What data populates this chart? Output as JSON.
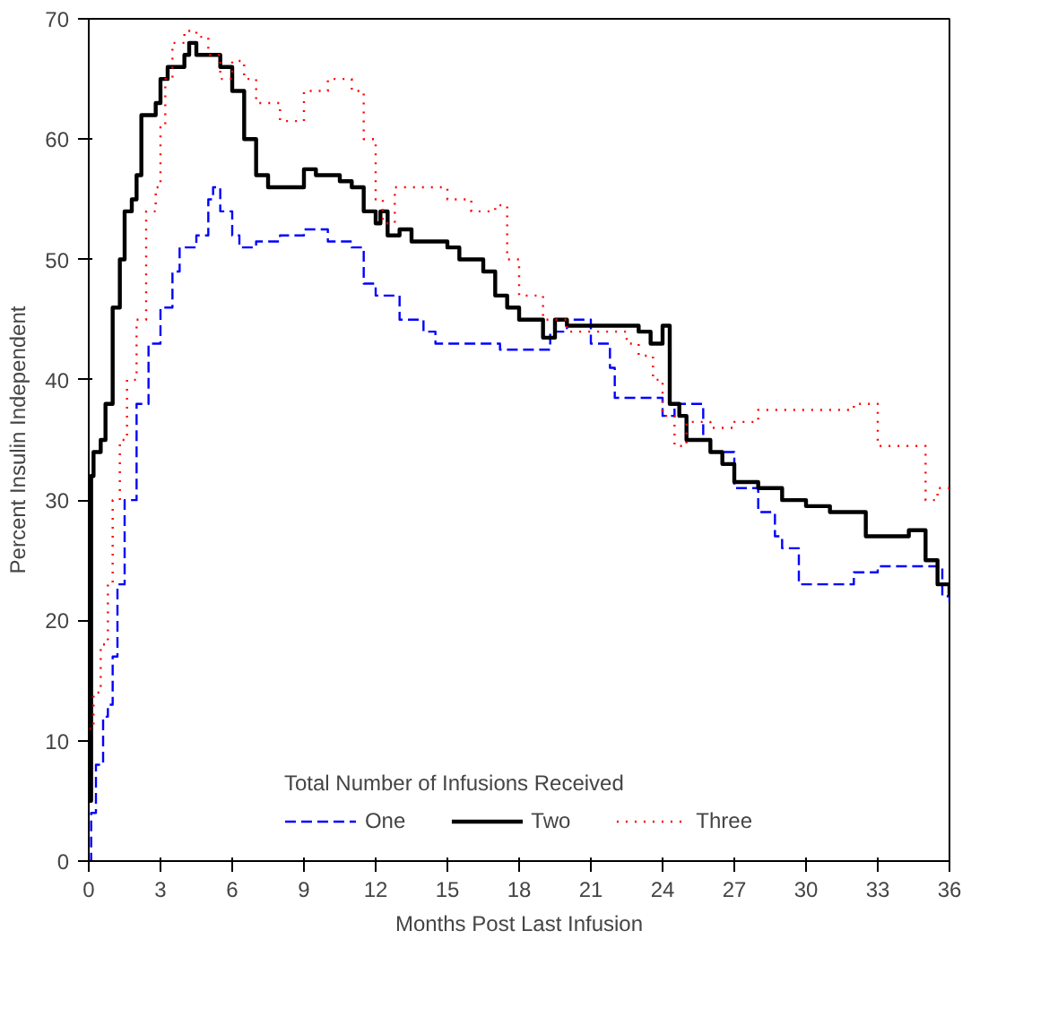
{
  "chart_data": {
    "type": "step",
    "xlabel": "Months Post Last Infusion",
    "ylabel": "Percent Insulin Independent",
    "legend_title": "Total Number of Infusions Received",
    "legend": "bottom",
    "grid": false,
    "marker": "none",
    "xlim": [
      0,
      36
    ],
    "xticks": [
      0,
      3,
      6,
      9,
      12,
      15,
      18,
      21,
      24,
      27,
      30,
      33,
      36
    ],
    "ylim": [
      0,
      70
    ],
    "yticks": [
      0,
      10,
      20,
      30,
      40,
      50,
      60,
      70
    ],
    "series": [
      {
        "name": "One",
        "color": "#0000ff",
        "line_style": "dashed",
        "x": [
          0,
          0.1,
          0.3,
          0.6,
          0.8,
          1,
          1.2,
          1.5,
          2,
          2.5,
          3,
          3.5,
          3.8,
          4.5,
          5,
          5.2,
          5.5,
          6,
          6.3,
          7,
          8,
          9,
          10,
          11,
          11.5,
          12,
          13,
          14,
          14.5,
          16,
          17.2,
          18.7,
          19.3,
          20,
          21,
          21.8,
          22,
          24,
          24.5,
          25.5,
          25.7,
          26,
          27,
          28,
          28.7,
          29,
          29.7,
          31,
          32,
          33,
          35.5,
          35.7,
          36
        ],
        "values": [
          0,
          4,
          8,
          12,
          13,
          17,
          23,
          30,
          38,
          43,
          46,
          49,
          51,
          52,
          55,
          56,
          54,
          52,
          51,
          51.5,
          52,
          52.5,
          51.5,
          51,
          48,
          47,
          45,
          44,
          43,
          43,
          42.5,
          42.5,
          44,
          45,
          43,
          41,
          38.5,
          37,
          38,
          38,
          35,
          34,
          31,
          29,
          27,
          26,
          23,
          23,
          24,
          24.5,
          24.5,
          22,
          21.5
        ]
      },
      {
        "name": "Two",
        "color": "#000000",
        "line_style": "solid",
        "x": [
          0,
          0.1,
          0.2,
          0.5,
          0.7,
          1,
          1.3,
          1.5,
          1.8,
          2,
          2.2,
          2.8,
          3,
          3.3,
          4,
          4.2,
          4.5,
          5,
          5.5,
          6,
          6.5,
          7,
          7.5,
          8.5,
          9,
          9.5,
          10.5,
          11,
          11.5,
          12,
          12.2,
          12.5,
          13,
          13.5,
          15,
          15.5,
          16.5,
          17,
          17.5,
          18,
          19,
          19.5,
          20,
          21,
          23,
          23.5,
          24,
          24.3,
          24.7,
          25,
          26,
          26.5,
          27,
          28,
          29,
          30,
          31,
          32.5,
          33,
          34.3,
          35,
          35.5,
          36
        ],
        "values": [
          5,
          32,
          34,
          35,
          38,
          46,
          50,
          54,
          55,
          57,
          62,
          63,
          65,
          66,
          67,
          68,
          67,
          67,
          66,
          64,
          60,
          57,
          56,
          56,
          57.5,
          57,
          56.5,
          56,
          54,
          53,
          54,
          52,
          52.5,
          51.5,
          51,
          50,
          49,
          47,
          46,
          45,
          43.5,
          45,
          44.5,
          44.5,
          44,
          43,
          44.5,
          38,
          37,
          35,
          34,
          33,
          31.5,
          31,
          30,
          29.5,
          29,
          27,
          27,
          27.5,
          25,
          23,
          22
        ]
      },
      {
        "name": "Three",
        "color": "#ff0000",
        "line_style": "dotted",
        "x": [
          0,
          0.2,
          0.5,
          0.8,
          1,
          1.3,
          1.6,
          2,
          2.4,
          2.8,
          3,
          3.2,
          3.5,
          4,
          4.5,
          5,
          5.5,
          6,
          6.5,
          7,
          8,
          9,
          10,
          11,
          11.5,
          12,
          12.3,
          12.8,
          15,
          16,
          17,
          17.5,
          18,
          19,
          20,
          21,
          22.5,
          23,
          23.6,
          24,
          24.5,
          25,
          26,
          27,
          28,
          31,
          32,
          33,
          34.5,
          35,
          35.5,
          36
        ],
        "values": [
          11,
          14,
          18,
          23,
          30,
          35,
          40,
          45,
          54,
          56,
          61,
          65,
          68,
          69,
          68.5,
          67,
          65,
          66.5,
          65,
          63,
          61.5,
          64,
          65,
          64,
          60,
          55,
          53,
          56,
          55,
          54,
          54.5,
          50,
          47,
          45,
          44,
          44,
          43,
          42,
          40,
          37,
          34.5,
          36.5,
          36,
          36.5,
          37.5,
          37.5,
          38,
          34.5,
          34.5,
          30,
          31,
          31
        ]
      }
    ]
  }
}
